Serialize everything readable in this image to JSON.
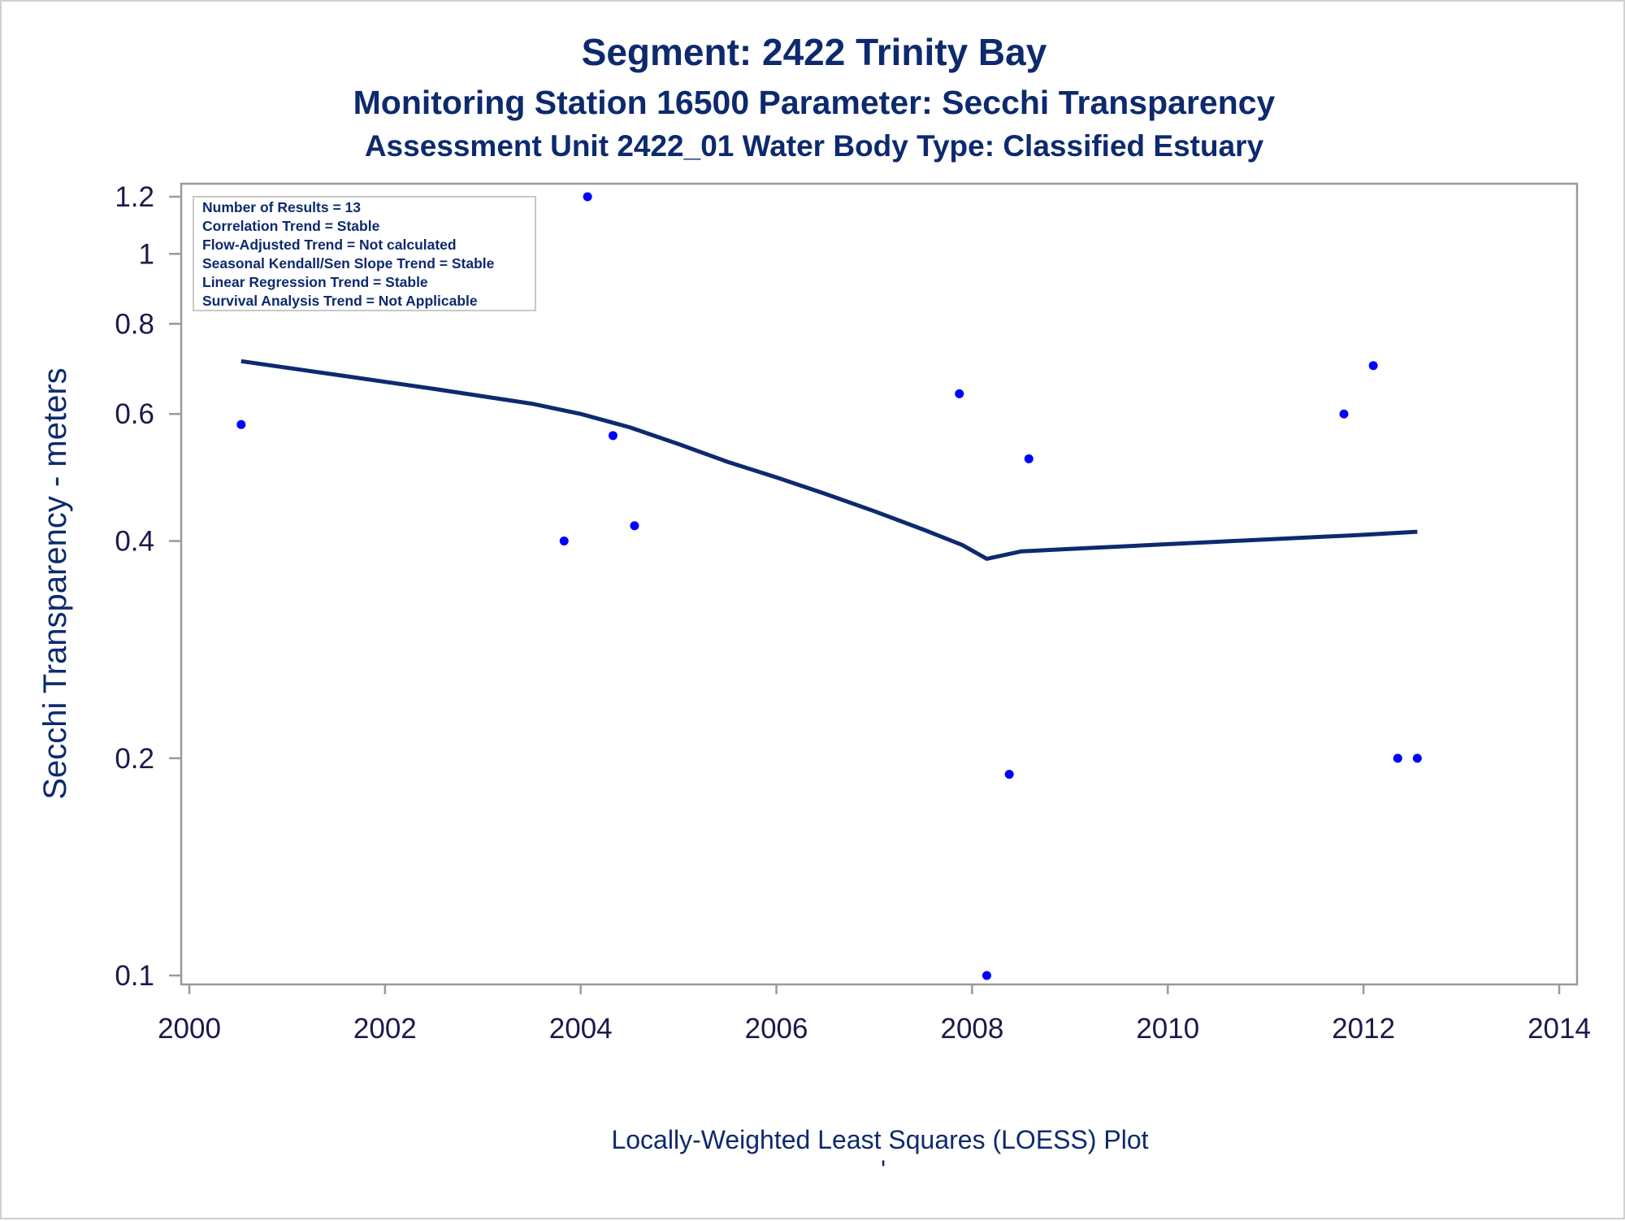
{
  "titles": {
    "line1": "Segment: 2422  Trinity Bay",
    "line2": "Monitoring Station 16500 Parameter: Secchi Transparency",
    "line3": "Assessment Unit 2422_01   Water Body Type: Classified Estuary"
  },
  "footer": {
    "caption": "Locally-Weighted Least Squares (LOESS) Plot",
    "mark": "'"
  },
  "stats_box": {
    "lines": [
      "Number of Results = 13",
      "Correlation Trend = Stable",
      "Flow-Adjusted Trend = Not calculated",
      "Seasonal Kendall/Sen Slope Trend = Stable",
      "Linear Regression Trend = Stable",
      "Survival Analysis Trend = Not Applicable"
    ]
  },
  "colors": {
    "points": "#0000ff",
    "loess_line": "#0d2a6e",
    "text": "#0d2a6e",
    "axis": "#9a9a9a"
  },
  "chart_data": {
    "type": "scatter",
    "title": "Segment: 2422  Trinity Bay",
    "xlabel": "",
    "ylabel": "Secchi Transparency - meters",
    "x_scale": "linear",
    "y_scale": "log",
    "xlim": [
      2000,
      2014
    ],
    "ylim": [
      0.095,
      1.25
    ],
    "x_ticks": [
      2000,
      2002,
      2004,
      2006,
      2008,
      2010,
      2012,
      2014
    ],
    "y_ticks": [
      0.1,
      0.2,
      0.4,
      0.6,
      0.8,
      1,
      1.2
    ],
    "grid": false,
    "series": [
      {
        "type": "scatter",
        "x": [
          2000.53,
          2003.83,
          2004.07,
          2004.33,
          2004.55,
          2007.87,
          2008.15,
          2008.38,
          2008.58,
          2011.8,
          2012.1,
          2012.35,
          2012.55
        ],
        "y": [
          0.58,
          0.4,
          1.2,
          0.56,
          0.42,
          0.64,
          0.1,
          0.19,
          0.52,
          0.6,
          0.7,
          0.2,
          0.2
        ]
      },
      {
        "type": "line",
        "x": [
          2000.53,
          2001.5,
          2002.5,
          2003.5,
          2004.0,
          2004.5,
          2005.0,
          2005.5,
          2006.0,
          2006.5,
          2007.0,
          2007.5,
          2007.9,
          2008.15,
          2008.5,
          2009.0,
          2009.5,
          2010.0,
          2010.5,
          2011.0,
          2011.5,
          2012.0,
          2012.55
        ],
        "y": [
          0.71,
          0.68,
          0.65,
          0.62,
          0.6,
          0.575,
          0.545,
          0.515,
          0.49,
          0.465,
          0.44,
          0.415,
          0.395,
          0.378,
          0.387,
          0.39,
          0.393,
          0.396,
          0.399,
          0.402,
          0.405,
          0.408,
          0.412
        ]
      }
    ]
  }
}
